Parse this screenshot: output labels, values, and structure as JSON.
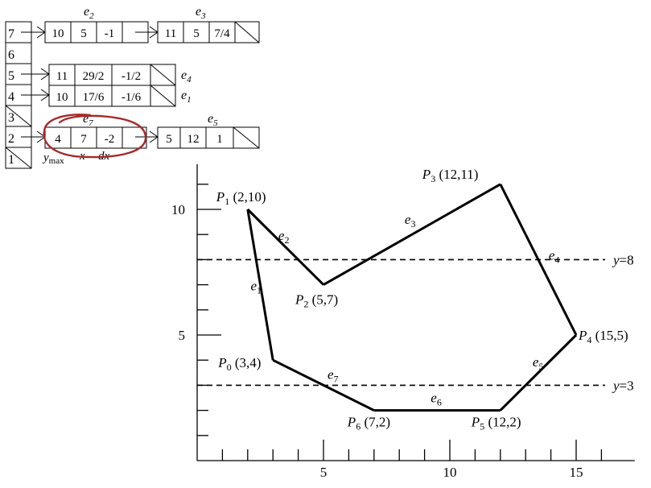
{
  "edge_table": {
    "buckets": [
      "7",
      "6",
      "5",
      "4",
      "3",
      "2",
      "1"
    ],
    "rows": [
      {
        "bucket": "7",
        "nodes": [
          {
            "label": "e",
            "sub": "2",
            "ymax": "10",
            "x": "5",
            "dx": "-1"
          },
          {
            "label": "e",
            "sub": "3",
            "ymax": "11",
            "x": "5",
            "dx": "7/4"
          }
        ]
      },
      {
        "bucket": "5",
        "nodes": [
          {
            "label": "e",
            "sub": "4",
            "ymax": "11",
            "x": "29/2",
            "dx": "-1/2"
          }
        ]
      },
      {
        "bucket": "4",
        "nodes": [
          {
            "label": "e",
            "sub": "1",
            "ymax": "10",
            "x": "17/6",
            "dx": "-1/6"
          }
        ]
      },
      {
        "bucket": "2",
        "nodes": [
          {
            "label": "e",
            "sub": "7",
            "ymax": "4",
            "x": "7",
            "dx": "-2"
          },
          {
            "label": "e",
            "sub": "5",
            "ymax": "5",
            "x": "12",
            "dx": "1"
          }
        ]
      }
    ],
    "field_labels": {
      "ymax": "y",
      "ymax_sub": "max",
      "x": "x",
      "dx": "dx"
    },
    "highlight_color": "#a52a2a"
  },
  "chart_data": {
    "type": "line",
    "xlim": [
      0,
      17
    ],
    "ylim": [
      0,
      11.8
    ],
    "x_ticks_labeled": [
      "5",
      "10",
      "15"
    ],
    "y_ticks_labeled": [
      "5",
      "10"
    ],
    "vertices": [
      {
        "name": "P",
        "sub": "0",
        "coords": "(3,4)",
        "x": 3,
        "y": 4
      },
      {
        "name": "P",
        "sub": "1",
        "coords": "(2,10)",
        "x": 2,
        "y": 10
      },
      {
        "name": "P",
        "sub": "2",
        "coords": "(5,7)",
        "x": 5,
        "y": 7
      },
      {
        "name": "P",
        "sub": "3",
        "coords": "(12,11)",
        "x": 12,
        "y": 11
      },
      {
        "name": "P",
        "sub": "4",
        "coords": "(15,5)",
        "x": 15,
        "y": 5
      },
      {
        "name": "P",
        "sub": "5",
        "coords": "(12,2)",
        "x": 12,
        "y": 2
      },
      {
        "name": "P",
        "sub": "6",
        "coords": "(7,2)",
        "x": 7,
        "y": 2
      }
    ],
    "edges": [
      {
        "label": "e",
        "sub": "1",
        "from": 0,
        "to": 1
      },
      {
        "label": "e",
        "sub": "2",
        "from": 1,
        "to": 2
      },
      {
        "label": "e",
        "sub": "3",
        "from": 2,
        "to": 3
      },
      {
        "label": "e",
        "sub": "4",
        "from": 3,
        "to": 4
      },
      {
        "label": "e",
        "sub": "5",
        "from": 4,
        "to": 5
      },
      {
        "label": "e",
        "sub": "6",
        "from": 5,
        "to": 6
      },
      {
        "label": "e",
        "sub": "7",
        "from": 6,
        "to": 0
      }
    ],
    "scanlines": [
      {
        "label": "y",
        "value_text": "=8",
        "y": 8
      },
      {
        "label": "y",
        "value_text": "=3",
        "y": 3
      }
    ]
  }
}
